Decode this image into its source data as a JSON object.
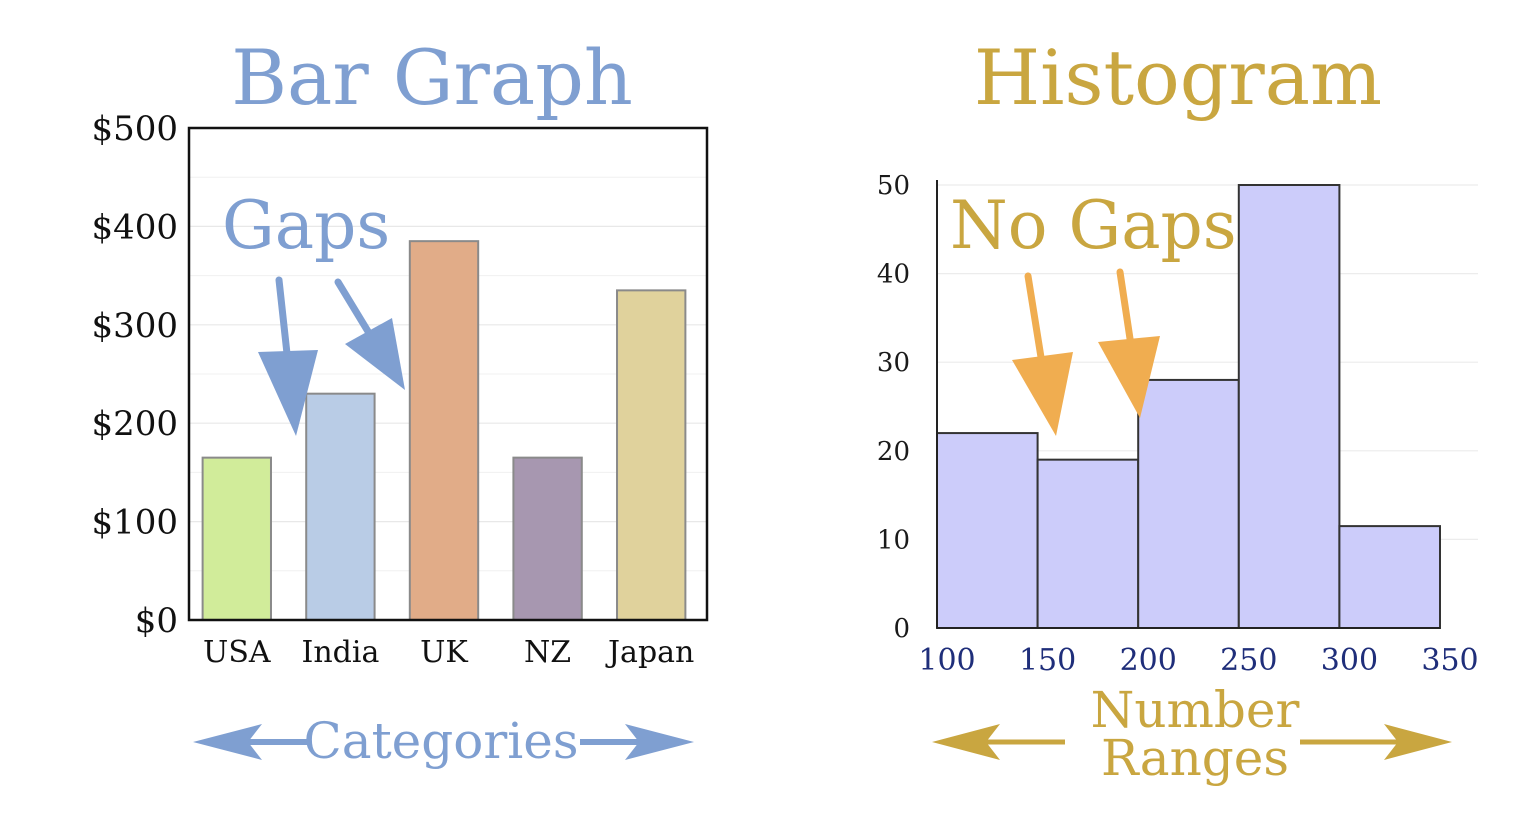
{
  "colors": {
    "bar_title": "#7f9fd1",
    "hist_title": "#c9a640",
    "hist_fill": "#ccccfa",
    "bar_arrow": "#7f9fd1",
    "hist_arrow": "#f0ad50",
    "hist_tick": "#1f2e7a"
  },
  "chart_data": [
    {
      "type": "bar",
      "title": "Bar Graph",
      "categories": [
        "USA",
        "India",
        "UK",
        "NZ",
        "Japan"
      ],
      "values": [
        165,
        230,
        385,
        165,
        335
      ],
      "bar_colors": [
        "#d1ec9a",
        "#b9cce6",
        "#e1ac88",
        "#a797b0",
        "#e0d29c"
      ],
      "ylim": [
        0,
        500
      ],
      "yticks": [
        "$0",
        "$100",
        "$200",
        "$300",
        "$400",
        "$500"
      ],
      "grid": true,
      "annotation": "Gaps",
      "caption": "Categories"
    },
    {
      "type": "histogram",
      "title": "Histogram",
      "bins": [
        100,
        150,
        200,
        250,
        300,
        350
      ],
      "xticks": [
        "100",
        "150",
        "200",
        "250",
        "300",
        "350"
      ],
      "values": [
        22,
        19,
        28,
        50,
        11.5
      ],
      "ylim": [
        0,
        50
      ],
      "yticks": [
        "0",
        "10",
        "20",
        "30",
        "40",
        "50"
      ],
      "grid": true,
      "annotation": "No Gaps",
      "caption_line1": "Number",
      "caption_line2": "Ranges"
    }
  ]
}
